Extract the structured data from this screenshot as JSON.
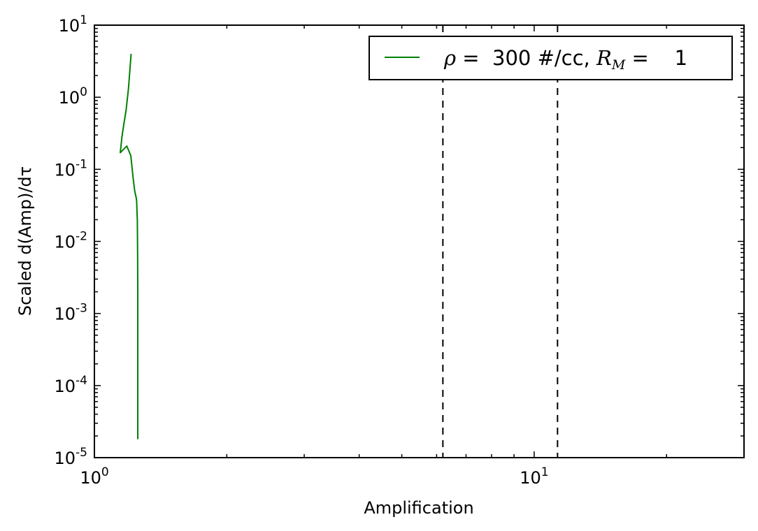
{
  "chart_data": {
    "type": "line",
    "xscale": "log",
    "yscale": "log",
    "xlim": [
      1,
      30
    ],
    "ylim": [
      1e-05,
      10
    ],
    "xlabel": "Amplification",
    "ylabel": "Scaled d(Amp)/dτ",
    "xticks": [
      {
        "value": 1,
        "base": "10",
        "exp": "0"
      },
      {
        "value": 10,
        "base": "10",
        "exp": "1"
      }
    ],
    "yticks": [
      {
        "value": 10,
        "base": "10",
        "exp": "1"
      },
      {
        "value": 1,
        "base": "10",
        "exp": "0"
      },
      {
        "value": 0.1,
        "base": "10",
        "exp": "-1"
      },
      {
        "value": 0.01,
        "base": "10",
        "exp": "-2"
      },
      {
        "value": 0.001,
        "base": "10",
        "exp": "-3"
      },
      {
        "value": 0.0001,
        "base": "10",
        "exp": "-4"
      },
      {
        "value": 1e-05,
        "base": "10",
        "exp": "-5"
      }
    ],
    "vlines": [
      6.2,
      11.3
    ],
    "legend": {
      "position": "top-right",
      "entry": {
        "rho_symbol": "ρ",
        "text_a": " =  300 #/cc, ",
        "rm_symbol": "R",
        "rm_sub": "M",
        "text_b": " =    1"
      }
    },
    "series": [
      {
        "color": "#008000",
        "points": [
          [
            1.212,
            4.0
          ],
          [
            1.195,
            1.3
          ],
          [
            1.18,
            0.65
          ],
          [
            1.165,
            0.4
          ],
          [
            1.155,
            0.28
          ],
          [
            1.145,
            0.17
          ],
          [
            1.185,
            0.21
          ],
          [
            1.21,
            0.155
          ],
          [
            1.225,
            0.075
          ],
          [
            1.235,
            0.05
          ],
          [
            1.245,
            0.04
          ],
          [
            1.248,
            0.035
          ],
          [
            1.25,
            0.025
          ],
          [
            1.252,
            0.02
          ],
          [
            1.253,
            0.012
          ],
          [
            1.254,
            0.006
          ],
          [
            1.255,
            0.002
          ],
          [
            1.255,
            1.8e-05
          ]
        ]
      }
    ]
  }
}
